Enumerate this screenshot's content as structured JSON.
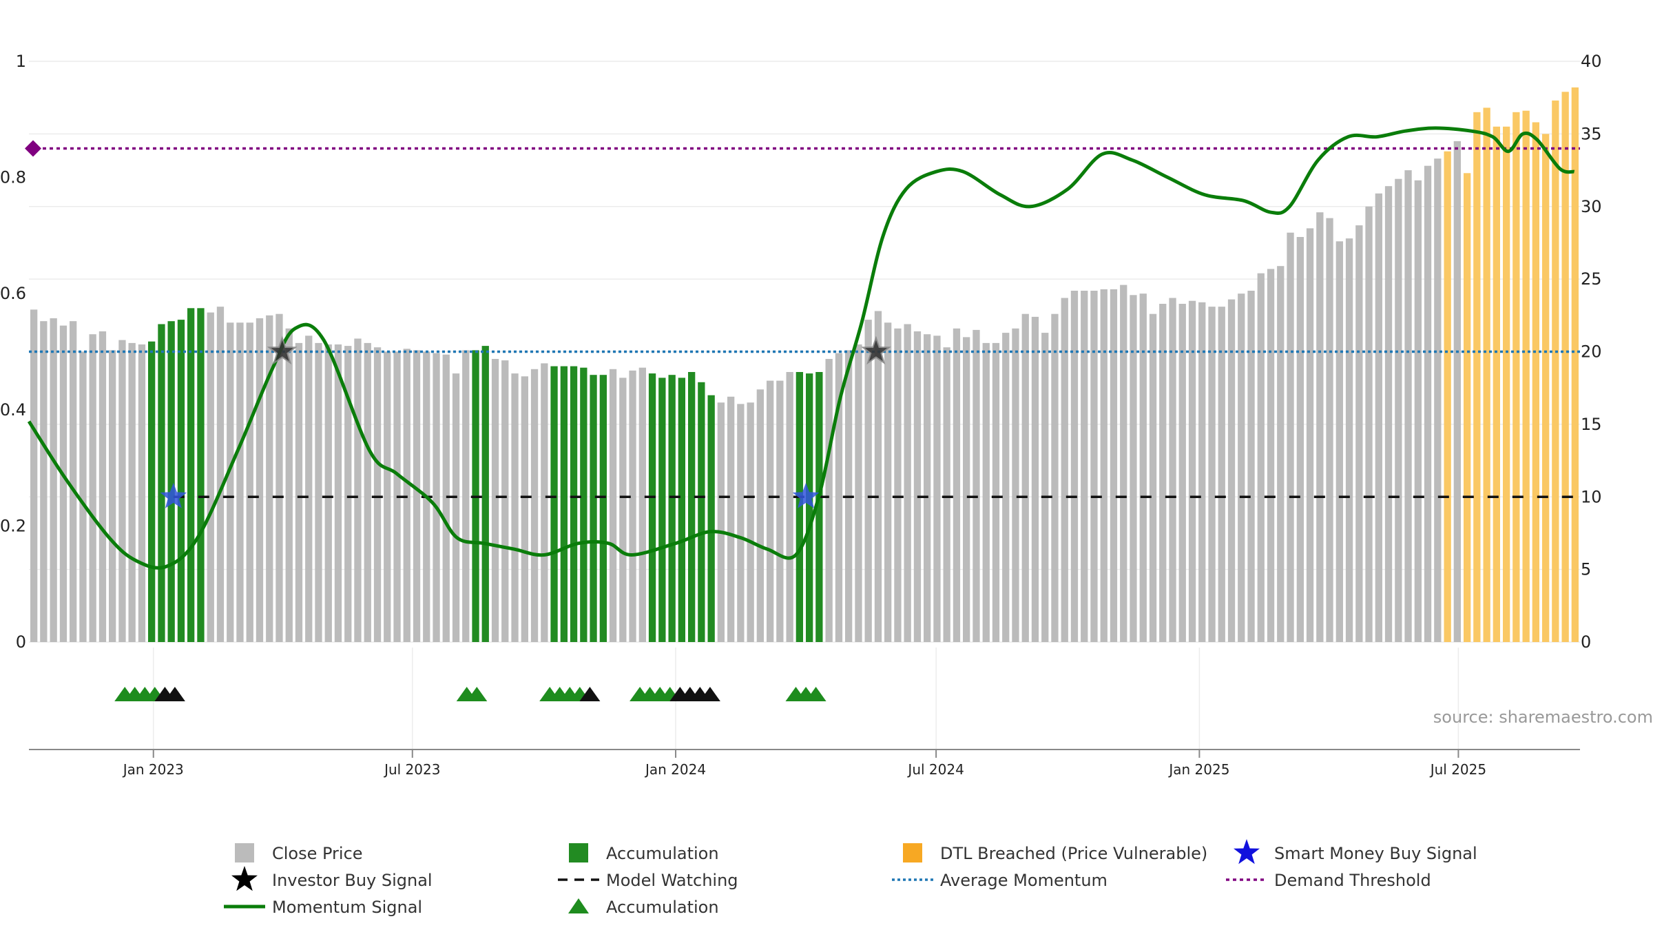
{
  "chart_data": {
    "type": "bar",
    "source_label": "source: sharemaestro.com",
    "left_axis": {
      "min": 0,
      "max": 1,
      "ticks": [
        "0",
        "0.2",
        "0.4",
        "0.6",
        "0.8",
        "1"
      ]
    },
    "right_axis": {
      "min": 0,
      "max": 40,
      "ticks": [
        "0",
        "5",
        "10",
        "15",
        "20",
        "25",
        "30",
        "35",
        "40"
      ]
    },
    "x_axis": {
      "start": "2022-10-06",
      "end": "2025-09-24",
      "ticks": [
        {
          "label": "Jan 2023",
          "date": "2023-01-01"
        },
        {
          "label": "Jul 2023",
          "date": "2023-07-01"
        },
        {
          "label": "Jan 2024",
          "date": "2024-01-01"
        },
        {
          "label": "Jul 2024",
          "date": "2024-07-01"
        },
        {
          "label": "Jan 2025",
          "date": "2025-01-01"
        },
        {
          "label": "Jul 2025",
          "date": "2025-07-01"
        }
      ]
    },
    "close_price": {
      "name": "Close Price",
      "unit_axis": "right",
      "weekly_values": [
        22.9,
        22.1,
        22.3,
        21.8,
        22.1,
        20.0,
        21.2,
        21.4,
        20.1,
        20.8,
        20.6,
        20.5,
        20.7,
        21.9,
        22.1,
        22.2,
        23.0,
        23.0,
        22.7,
        23.1,
        22.0,
        22.0,
        22.0,
        22.3,
        22.5,
        22.6,
        21.6,
        20.6,
        21.1,
        20.6,
        20.5,
        20.5,
        20.4,
        20.9,
        20.6,
        20.3,
        20.0,
        20.0,
        20.2,
        20.1,
        20.0,
        19.9,
        19.8,
        18.5,
        20.1,
        20.1,
        20.4,
        19.5,
        19.4,
        18.5,
        18.3,
        18.8,
        19.2,
        19.0,
        19.0,
        19.0,
        18.9,
        18.4,
        18.4,
        18.8,
        18.2,
        18.7,
        18.9,
        18.5,
        18.2,
        18.4,
        18.2,
        18.6,
        17.9,
        17.0,
        16.5,
        16.9,
        16.4,
        16.5,
        17.4,
        18.0,
        18.0,
        18.6,
        18.6,
        18.5,
        18.6,
        19.5,
        19.9,
        20.1,
        20.5,
        22.2,
        22.8,
        22.0,
        21.6,
        21.9,
        21.4,
        21.2,
        21.1,
        20.3,
        21.6,
        21.0,
        21.5,
        20.6,
        20.6,
        21.3,
        21.6,
        22.6,
        22.4,
        21.3,
        22.6,
        23.7,
        24.2,
        24.2,
        24.2,
        24.3,
        24.3,
        24.6,
        23.9,
        24.0,
        22.6,
        23.3,
        23.7,
        23.3,
        23.5,
        23.4,
        23.1,
        23.1,
        23.6,
        24.0,
        24.2,
        25.4,
        25.7,
        25.9,
        28.2,
        27.9,
        28.5,
        29.6,
        29.2,
        27.6,
        27.8,
        28.7,
        30.0,
        30.9,
        31.4,
        31.9,
        32.5,
        31.8,
        32.8,
        33.3,
        33.8,
        34.5,
        32.3,
        36.5,
        36.8,
        35.5,
        35.5,
        36.5,
        36.6,
        35.8,
        35.0,
        37.3,
        37.9,
        38.2
      ],
      "color": "#bbbbbb"
    },
    "accumulation_bars": {
      "name": "Accumulation",
      "color": "#228b22",
      "indices": [
        12,
        13,
        14,
        15,
        16,
        17,
        45,
        46,
        53,
        54,
        55,
        56,
        57,
        58,
        63,
        64,
        65,
        66,
        67,
        68,
        69,
        78,
        79,
        80
      ]
    },
    "dtl_breached_bars": {
      "name": "DTL Breached (Price Vulnerable)",
      "color": "#fac864",
      "indices": [
        144,
        146,
        147,
        148,
        149,
        150,
        151,
        152,
        153,
        154,
        155,
        156,
        157
      ]
    },
    "momentum_signal": {
      "name": "Momentum Signal",
      "unit_axis": "left",
      "color": "#0a7d0a",
      "points": [
        {
          "date": "2022-10-06",
          "value": 0.38
        },
        {
          "date": "2022-11-01",
          "value": 0.28
        },
        {
          "date": "2022-12-01",
          "value": 0.18
        },
        {
          "date": "2022-12-20",
          "value": 0.14
        },
        {
          "date": "2023-01-10",
          "value": 0.13
        },
        {
          "date": "2023-02-01",
          "value": 0.18
        },
        {
          "date": "2023-03-01",
          "value": 0.33
        },
        {
          "date": "2023-03-25",
          "value": 0.47
        },
        {
          "date": "2023-04-10",
          "value": 0.54
        },
        {
          "date": "2023-04-30",
          "value": 0.52
        },
        {
          "date": "2023-06-01",
          "value": 0.33
        },
        {
          "date": "2023-06-20",
          "value": 0.29
        },
        {
          "date": "2023-07-15",
          "value": 0.24
        },
        {
          "date": "2023-08-01",
          "value": 0.18
        },
        {
          "date": "2023-08-20",
          "value": 0.17
        },
        {
          "date": "2023-09-10",
          "value": 0.16
        },
        {
          "date": "2023-10-01",
          "value": 0.15
        },
        {
          "date": "2023-10-25",
          "value": 0.17
        },
        {
          "date": "2023-11-15",
          "value": 0.17
        },
        {
          "date": "2023-12-01",
          "value": 0.15
        },
        {
          "date": "2024-01-01",
          "value": 0.17
        },
        {
          "date": "2024-01-25",
          "value": 0.19
        },
        {
          "date": "2024-02-15",
          "value": 0.18
        },
        {
          "date": "2024-03-05",
          "value": 0.16
        },
        {
          "date": "2024-03-25",
          "value": 0.15
        },
        {
          "date": "2024-04-10",
          "value": 0.25
        },
        {
          "date": "2024-04-25",
          "value": 0.42
        },
        {
          "date": "2024-05-10",
          "value": 0.55
        },
        {
          "date": "2024-05-25",
          "value": 0.7
        },
        {
          "date": "2024-06-10",
          "value": 0.78
        },
        {
          "date": "2024-07-01",
          "value": 0.81
        },
        {
          "date": "2024-07-20",
          "value": 0.81
        },
        {
          "date": "2024-08-15",
          "value": 0.77
        },
        {
          "date": "2024-09-05",
          "value": 0.75
        },
        {
          "date": "2024-10-01",
          "value": 0.78
        },
        {
          "date": "2024-10-25",
          "value": 0.84
        },
        {
          "date": "2024-11-15",
          "value": 0.83
        },
        {
          "date": "2024-12-10",
          "value": 0.8
        },
        {
          "date": "2025-01-05",
          "value": 0.77
        },
        {
          "date": "2025-02-01",
          "value": 0.76
        },
        {
          "date": "2025-02-20",
          "value": 0.74
        },
        {
          "date": "2025-03-05",
          "value": 0.75
        },
        {
          "date": "2025-03-25",
          "value": 0.83
        },
        {
          "date": "2025-04-15",
          "value": 0.87
        },
        {
          "date": "2025-05-05",
          "value": 0.87
        },
        {
          "date": "2025-05-25",
          "value": 0.88
        },
        {
          "date": "2025-06-15",
          "value": 0.885
        },
        {
          "date": "2025-07-10",
          "value": 0.88
        },
        {
          "date": "2025-07-25",
          "value": 0.87
        },
        {
          "date": "2025-08-05",
          "value": 0.845
        },
        {
          "date": "2025-08-15",
          "value": 0.875
        },
        {
          "date": "2025-08-25",
          "value": 0.865
        },
        {
          "date": "2025-09-10",
          "value": 0.815
        },
        {
          "date": "2025-09-20",
          "value": 0.81
        }
      ]
    },
    "average_momentum": {
      "name": "Average Momentum",
      "value": 0.5,
      "color": "#1f77b4"
    },
    "demand_threshold": {
      "name": "Demand Threshold",
      "value": 0.85,
      "color": "#800080"
    },
    "model_watching": {
      "name": "Model Watching",
      "value": 0.25,
      "start": "2023-01-15",
      "color": "#111111"
    },
    "investor_buy_signals": {
      "name": "Investor Buy Signal",
      "points": [
        {
          "date": "2023-04-01",
          "value": 0.5
        },
        {
          "date": "2024-05-20",
          "value": 0.5
        }
      ]
    },
    "smart_money_buy_signals": {
      "name": "Smart Money Buy Signal",
      "points": [
        {
          "date": "2023-01-15",
          "value": 0.25
        },
        {
          "date": "2024-04-01",
          "value": 0.25
        }
      ]
    },
    "accumulation_markers": {
      "name": "Accumulation",
      "green": [
        "2022-12-12",
        "2022-12-19",
        "2022-12-26",
        "2023-01-02",
        "2023-08-08",
        "2023-08-15",
        "2023-10-05",
        "2023-10-12",
        "2023-10-19",
        "2023-10-26",
        "2023-12-07",
        "2023-12-14",
        "2023-12-21",
        "2023-12-28",
        "2024-03-25",
        "2024-04-01",
        "2024-04-08"
      ],
      "black": [
        "2023-01-09",
        "2023-01-16",
        "2023-11-02",
        "2024-01-04",
        "2024-01-11",
        "2024-01-18",
        "2024-01-25"
      ]
    },
    "legend": [
      {
        "label": "Close Price",
        "symbol": "gray-square"
      },
      {
        "label": "Accumulation",
        "symbol": "green-square"
      },
      {
        "label": "DTL Breached (Price Vulnerable)",
        "symbol": "orange-square"
      },
      {
        "label": "Smart Money Buy Signal",
        "symbol": "blue-star"
      },
      {
        "label": "Investor Buy Signal",
        "symbol": "black-star"
      },
      {
        "label": "Model Watching",
        "symbol": "black-dash"
      },
      {
        "label": "Average Momentum",
        "symbol": "blue-dotted"
      },
      {
        "label": "Demand Threshold",
        "symbol": "purple-dotted"
      },
      {
        "label": "Momentum Signal",
        "symbol": "green-line"
      },
      {
        "label": "Accumulation",
        "symbol": "green-triangle"
      }
    ]
  }
}
